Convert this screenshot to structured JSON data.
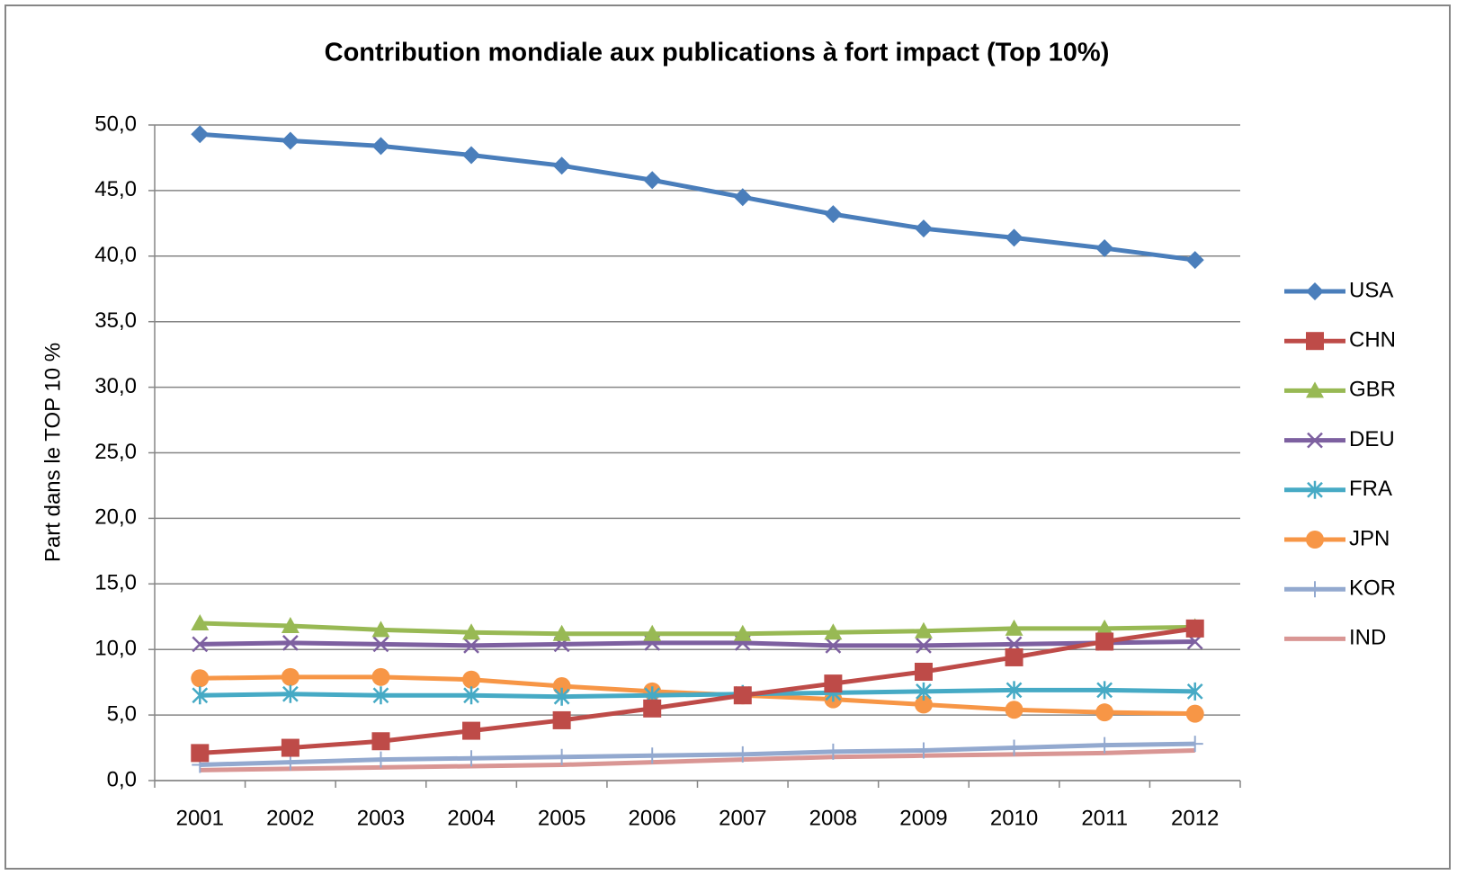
{
  "chart_data": {
    "type": "line",
    "title": "Contribution mondiale aux publications à fort impact (Top 10%)",
    "y_label": "Part  dans le TOP 10 %",
    "categories": [
      "2001",
      "2002",
      "2003",
      "2004",
      "2005",
      "2006",
      "2007",
      "2008",
      "2009",
      "2010",
      "2011",
      "2012"
    ],
    "series": [
      {
        "name": "USA",
        "color": "#4a7ebb",
        "marker": "diamond",
        "values": [
          49.3,
          48.8,
          48.4,
          47.7,
          46.9,
          45.8,
          44.5,
          43.2,
          42.1,
          41.4,
          40.6,
          39.7
        ]
      },
      {
        "name": "CHN",
        "color": "#be4b48",
        "marker": "square",
        "values": [
          2.1,
          2.5,
          3.0,
          3.8,
          4.6,
          5.5,
          6.5,
          7.4,
          8.3,
          9.4,
          10.6,
          11.6
        ]
      },
      {
        "name": "GBR",
        "color": "#98b954",
        "marker": "triangle",
        "values": [
          12.0,
          11.8,
          11.5,
          11.3,
          11.2,
          11.2,
          11.2,
          11.3,
          11.4,
          11.6,
          11.6,
          11.7
        ]
      },
      {
        "name": "DEU",
        "color": "#7d60a0",
        "marker": "x",
        "values": [
          10.4,
          10.5,
          10.4,
          10.3,
          10.4,
          10.5,
          10.5,
          10.3,
          10.3,
          10.4,
          10.5,
          10.6
        ]
      },
      {
        "name": "FRA",
        "color": "#46aac5",
        "marker": "star",
        "values": [
          6.5,
          6.6,
          6.5,
          6.5,
          6.4,
          6.5,
          6.6,
          6.7,
          6.8,
          6.9,
          6.9,
          6.8
        ]
      },
      {
        "name": "JPN",
        "color": "#f79646",
        "marker": "circle",
        "values": [
          7.8,
          7.9,
          7.9,
          7.7,
          7.2,
          6.8,
          6.5,
          6.2,
          5.8,
          5.4,
          5.2,
          5.1
        ]
      },
      {
        "name": "KOR",
        "color": "#93a9cf",
        "marker": "plus",
        "values": [
          1.2,
          1.4,
          1.6,
          1.7,
          1.8,
          1.9,
          2.0,
          2.2,
          2.3,
          2.5,
          2.7,
          2.8
        ]
      },
      {
        "name": "IND",
        "color": "#d99694",
        "marker": "none",
        "values": [
          0.8,
          0.9,
          1.0,
          1.1,
          1.2,
          1.4,
          1.6,
          1.8,
          1.9,
          2.0,
          2.1,
          2.3
        ]
      }
    ],
    "ylim": [
      0,
      50
    ],
    "yticks": [
      {
        "value": 0,
        "label": "0,0"
      },
      {
        "value": 5,
        "label": "5,0"
      },
      {
        "value": 10,
        "label": "10,0"
      },
      {
        "value": 15,
        "label": "15,0"
      },
      {
        "value": 20,
        "label": "20,0"
      },
      {
        "value": 25,
        "label": "25,0"
      },
      {
        "value": 30,
        "label": "30,0"
      },
      {
        "value": 35,
        "label": "35,0"
      },
      {
        "value": 40,
        "label": "40,0"
      },
      {
        "value": 45,
        "label": "45,0"
      },
      {
        "value": 50,
        "label": "50,0"
      }
    ],
    "grid": true,
    "legend": "right"
  }
}
